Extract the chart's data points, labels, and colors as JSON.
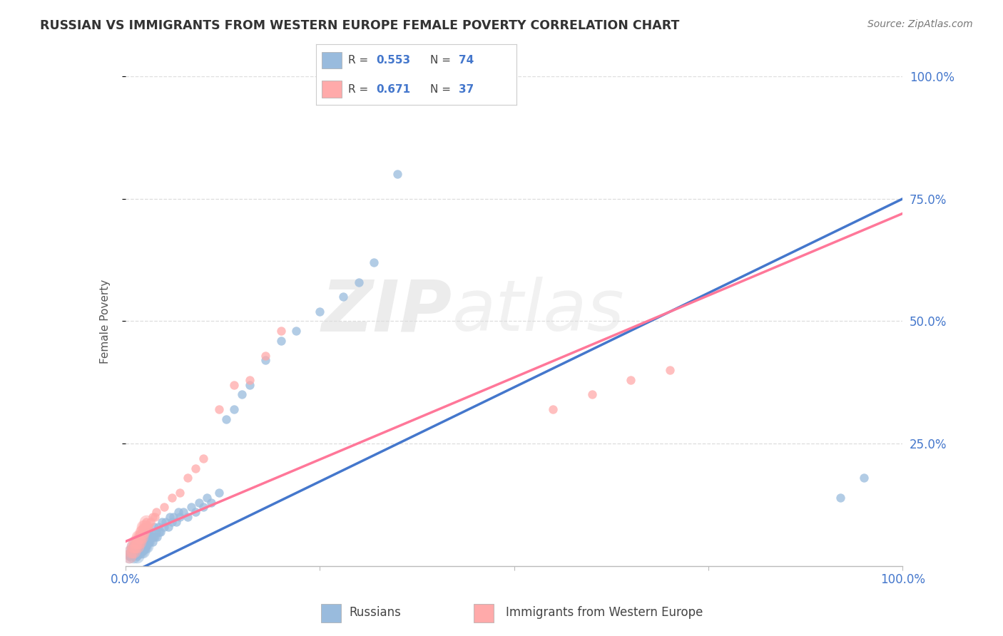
{
  "title": "RUSSIAN VS IMMIGRANTS FROM WESTERN EUROPE FEMALE POVERTY CORRELATION CHART",
  "source": "Source: ZipAtlas.com",
  "ylabel": "Female Poverty",
  "xlim": [
    0,
    1.0
  ],
  "ylim": [
    0,
    1.0
  ],
  "watermark_text": "ZIPatlas",
  "legend_r1": "0.553",
  "legend_n1": "74",
  "legend_r2": "0.671",
  "legend_n2": "37",
  "legend_label1": "Russians",
  "legend_label2": "Immigrants from Western Europe",
  "color_blue": "#99BBDD",
  "color_pink": "#FFAAAA",
  "color_blue_dark": "#4477CC",
  "color_pink_dark": "#FF7799",
  "color_title": "#333333",
  "color_axis_label": "#555555",
  "color_tick_blue": "#4477CC",
  "color_source": "#777777",
  "background_color": "#FFFFFF",
  "grid_color": "#DDDDDD",
  "russians_x": [
    0.005,
    0.008,
    0.01,
    0.01,
    0.01,
    0.012,
    0.013,
    0.015,
    0.015,
    0.015,
    0.016,
    0.017,
    0.018,
    0.018,
    0.019,
    0.02,
    0.02,
    0.021,
    0.022,
    0.022,
    0.023,
    0.024,
    0.025,
    0.025,
    0.026,
    0.027,
    0.028,
    0.03,
    0.03,
    0.031,
    0.032,
    0.033,
    0.035,
    0.036,
    0.037,
    0.038,
    0.04,
    0.041,
    0.042,
    0.043,
    0.045,
    0.047,
    0.05,
    0.052,
    0.055,
    0.057,
    0.06,
    0.062,
    0.065,
    0.068,
    0.07,
    0.075,
    0.08,
    0.085,
    0.09,
    0.095,
    0.1,
    0.105,
    0.11,
    0.12,
    0.13,
    0.14,
    0.15,
    0.16,
    0.18,
    0.2,
    0.22,
    0.25,
    0.28,
    0.3,
    0.32,
    0.35,
    0.92,
    0.95
  ],
  "russians_y": [
    0.02,
    0.03,
    0.02,
    0.03,
    0.04,
    0.03,
    0.04,
    0.02,
    0.03,
    0.04,
    0.03,
    0.04,
    0.03,
    0.05,
    0.04,
    0.03,
    0.05,
    0.04,
    0.03,
    0.06,
    0.04,
    0.05,
    0.04,
    0.06,
    0.05,
    0.04,
    0.06,
    0.05,
    0.07,
    0.05,
    0.06,
    0.07,
    0.05,
    0.06,
    0.08,
    0.06,
    0.07,
    0.06,
    0.08,
    0.07,
    0.07,
    0.09,
    0.08,
    0.09,
    0.08,
    0.1,
    0.09,
    0.1,
    0.09,
    0.11,
    0.1,
    0.11,
    0.1,
    0.12,
    0.11,
    0.13,
    0.12,
    0.14,
    0.13,
    0.15,
    0.3,
    0.32,
    0.35,
    0.37,
    0.42,
    0.46,
    0.48,
    0.52,
    0.55,
    0.58,
    0.62,
    0.8,
    0.14,
    0.18
  ],
  "western_x": [
    0.005,
    0.008,
    0.01,
    0.01,
    0.012,
    0.013,
    0.015,
    0.016,
    0.017,
    0.018,
    0.019,
    0.02,
    0.021,
    0.022,
    0.023,
    0.025,
    0.027,
    0.03,
    0.032,
    0.035,
    0.038,
    0.04,
    0.05,
    0.06,
    0.07,
    0.08,
    0.09,
    0.1,
    0.12,
    0.14,
    0.16,
    0.18,
    0.2,
    0.55,
    0.6,
    0.65,
    0.7
  ],
  "western_y": [
    0.02,
    0.03,
    0.03,
    0.04,
    0.04,
    0.05,
    0.04,
    0.05,
    0.06,
    0.05,
    0.06,
    0.06,
    0.07,
    0.07,
    0.08,
    0.08,
    0.09,
    0.08,
    0.09,
    0.1,
    0.1,
    0.11,
    0.12,
    0.14,
    0.15,
    0.18,
    0.2,
    0.22,
    0.32,
    0.37,
    0.38,
    0.43,
    0.48,
    0.32,
    0.35,
    0.38,
    0.4
  ],
  "blue_line_x": [
    0.0,
    1.0
  ],
  "blue_line_y": [
    -0.02,
    0.75
  ],
  "pink_line_x": [
    0.0,
    1.0
  ],
  "pink_line_y": [
    0.05,
    0.72
  ]
}
